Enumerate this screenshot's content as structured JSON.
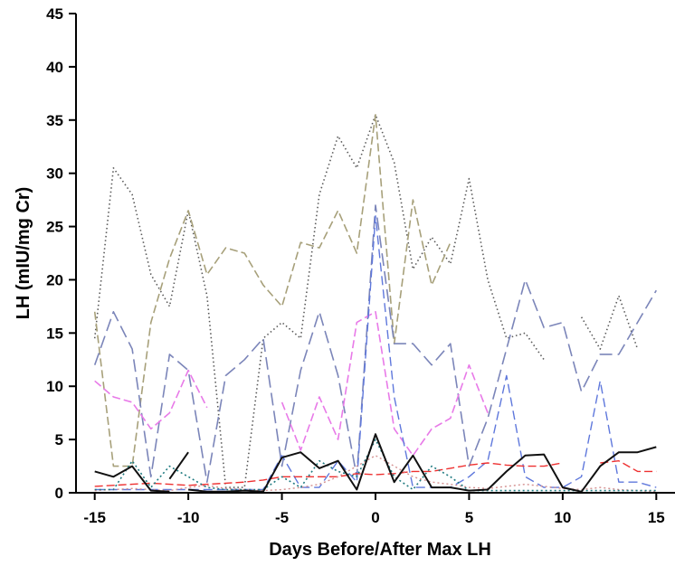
{
  "chart_data": {
    "type": "line",
    "xlabel": "Days Before/After Max LH",
    "ylabel": "LH (mIU/mg Cr)",
    "xlim": [
      -16,
      16
    ],
    "ylim": [
      0,
      45
    ],
    "xticks": [
      -15,
      -10,
      -5,
      0,
      5,
      10,
      15
    ],
    "yticks": [
      0,
      5,
      10,
      15,
      20,
      25,
      30,
      35,
      40,
      45
    ],
    "grid": false,
    "legend": "none",
    "series": [
      {
        "color": "#5a5a5a",
        "dash": "1.5,3",
        "width": 1.6,
        "x": [
          -15,
          -14,
          -13,
          -12,
          -11,
          -10,
          -9,
          -8,
          -7,
          -6,
          -5,
          -4,
          -3,
          -2,
          -1,
          0,
          1,
          2,
          3,
          4,
          5,
          6,
          7,
          8,
          9,
          10,
          11,
          12,
          13,
          14
        ],
        "y": [
          14.5,
          30.5,
          28,
          20.5,
          17.5,
          26.5,
          18.5,
          0.5,
          0.5,
          14.5,
          16,
          14.5,
          28,
          33.5,
          30.5,
          35.5,
          31,
          21,
          24,
          21.5,
          29.5,
          20,
          14.5,
          15,
          12.5,
          null,
          16.5,
          13.5,
          18.5,
          13.5
        ]
      },
      {
        "color": "#a7a07a",
        "dash": "9,4",
        "width": 1.6,
        "x": [
          -15,
          -14,
          -13,
          -12,
          -11,
          -10,
          -9,
          -8,
          -7,
          -6,
          -5,
          -4,
          -3,
          -2,
          -1,
          0,
          1,
          2,
          3,
          4
        ],
        "y": [
          17,
          2.5,
          2.5,
          16,
          22,
          26.5,
          20.5,
          23,
          22.5,
          19.5,
          17.5,
          23.5,
          23,
          26.5,
          22.5,
          35.5,
          14,
          27.5,
          19.5,
          23.5
        ]
      },
      {
        "color": "#7b85b9",
        "dash": "14,6",
        "width": 1.6,
        "x": [
          -15,
          -14,
          -13,
          -12,
          -11,
          -10,
          -9,
          -8,
          -7,
          -6,
          -5,
          -4,
          -3,
          -2,
          -1,
          0,
          1,
          2,
          3,
          4,
          5,
          6,
          7,
          8,
          9,
          10,
          11,
          12,
          13,
          14,
          15
        ],
        "y": [
          12,
          17,
          13.5,
          1.5,
          13,
          11.5,
          1,
          11,
          12.5,
          14.5,
          2.5,
          11.5,
          17,
          11,
          1.5,
          27,
          14,
          14,
          12,
          14,
          2.5,
          7,
          13.5,
          20,
          15.5,
          16,
          9.5,
          13,
          13,
          16,
          19
        ]
      },
      {
        "color": "#e87ae8",
        "dash": "9,4",
        "width": 1.6,
        "x": [
          -15,
          -14,
          -13,
          -12,
          -11,
          -10,
          -9,
          null,
          -5,
          -4,
          -3,
          -2,
          -1,
          0,
          1,
          2,
          3,
          4,
          5,
          6
        ],
        "y": [
          10.5,
          9,
          8.5,
          6,
          7.5,
          11.5,
          8,
          null,
          8.5,
          4,
          9,
          5,
          16,
          17,
          6,
          3.5,
          6,
          7,
          12,
          7.5
        ]
      },
      {
        "color": "#5f78dc",
        "dash": "10,5",
        "width": 1.4,
        "x": [
          -15,
          -14,
          -13,
          -12,
          -11,
          -10,
          -9,
          -8,
          -7,
          -6,
          -5,
          -4,
          -3,
          -2,
          -1,
          0,
          1,
          2,
          3,
          4,
          5,
          6,
          7,
          8,
          9,
          10,
          11,
          12,
          13,
          14,
          15
        ],
        "y": [
          0.3,
          0.3,
          0.3,
          0.3,
          0.3,
          0.3,
          0.3,
          0.3,
          0.3,
          0.3,
          3.5,
          0.5,
          0.5,
          3,
          1,
          26,
          9,
          0.5,
          0.5,
          0.5,
          1.5,
          3,
          11,
          1.5,
          0.5,
          0.5,
          1.5,
          10.5,
          1,
          1,
          0.5
        ]
      },
      {
        "color": "#ee3030",
        "dash": "9,4",
        "width": 1.4,
        "x": [
          -15,
          -14,
          -13,
          -12,
          -11,
          -10,
          -9,
          -8,
          -7,
          -6,
          -5,
          -4,
          -3,
          -2,
          -1,
          0,
          1,
          2,
          3,
          4,
          5,
          6,
          7,
          8,
          9,
          10,
          11,
          12,
          13,
          14,
          15
        ],
        "y": [
          0.6,
          0.7,
          0.8,
          0.9,
          0.8,
          0.7,
          0.8,
          0.9,
          1,
          1.2,
          1.5,
          1.5,
          1.5,
          1.5,
          1.8,
          1.7,
          1.8,
          2,
          2,
          2.3,
          2.6,
          2.8,
          2.6,
          2.5,
          2.5,
          2.8,
          null,
          2.8,
          3,
          2,
          2
        ]
      },
      {
        "color": "#d49090",
        "dash": "2,3",
        "width": 1.4,
        "x": [
          -15,
          -14,
          -13,
          -12,
          -11,
          -10,
          -9,
          -8,
          -7,
          -6,
          -5,
          -4,
          -3,
          -2,
          -1,
          0,
          1,
          2,
          3,
          4,
          5,
          6,
          7,
          8,
          9,
          10,
          11,
          12,
          13,
          14,
          15
        ],
        "y": [
          0.2,
          0.3,
          0.4,
          0.3,
          0.2,
          0.5,
          0.7,
          0.4,
          0.3,
          0.2,
          0.3,
          0.5,
          0.8,
          1.5,
          2.5,
          3.5,
          2.5,
          1.5,
          1,
          0.8,
          0.5,
          0.4,
          0.6,
          0.8,
          0.6,
          0.4,
          0.3,
          0.5,
          0.3,
          0.2,
          0.1
        ]
      },
      {
        "color": "#1f7a80",
        "dash": "2,3",
        "width": 1.6,
        "x": [
          -15,
          -14,
          -13,
          -12,
          -11,
          -10,
          -9,
          -8,
          -7,
          -6,
          -5,
          -4,
          -3,
          -2,
          -1,
          0,
          1,
          2,
          3,
          4,
          5,
          6,
          7,
          8,
          9,
          10,
          11,
          12,
          13,
          14,
          15
        ],
        "y": [
          0.3,
          0.3,
          3,
          0.5,
          2.5,
          1.5,
          0.5,
          0.3,
          0.3,
          0.3,
          1.5,
          0.5,
          3,
          2,
          1.5,
          5,
          1.5,
          0.3,
          2.5,
          1.5,
          0.2,
          0.2,
          0.2,
          0.2,
          0.2,
          0.2,
          0.2,
          0.2,
          0.2,
          0.2,
          0.2
        ]
      },
      {
        "color": "#111111",
        "dash": "",
        "width": 2,
        "x": [
          -15,
          -14,
          -13,
          -12,
          -11,
          null,
          -11,
          -10
        ],
        "y": [
          2,
          1.5,
          2.5,
          0.2,
          0.1,
          null,
          1.3,
          3.8
        ]
      },
      {
        "color": "#111111",
        "dash": "",
        "width": 2,
        "x": [
          -10,
          -9,
          -8,
          -7,
          -6,
          -5,
          -4,
          -3,
          -2,
          -1,
          0,
          1,
          2,
          3,
          4,
          5,
          6,
          7,
          8,
          9,
          10,
          11,
          12,
          13,
          14,
          15
        ],
        "y": [
          0.3,
          0.1,
          0.1,
          0.2,
          0.1,
          3.3,
          3.8,
          2.3,
          3,
          0.3,
          5.5,
          1,
          3.5,
          0.5,
          0.5,
          0.2,
          0.3,
          2,
          3.5,
          3.6,
          0.5,
          0.1,
          2.5,
          3.8,
          3.8,
          4.3
        ]
      }
    ]
  }
}
